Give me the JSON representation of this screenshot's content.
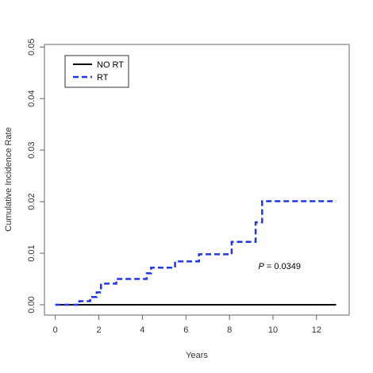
{
  "chart_data": {
    "type": "line",
    "title": "",
    "xlabel": "Years",
    "ylabel": "Cumulative Incidence Rate",
    "xlim": [
      -0.5,
      13.5
    ],
    "ylim": [
      -0.002,
      0.0505
    ],
    "x_ticks": [
      0,
      2,
      4,
      6,
      8,
      10,
      12
    ],
    "x_tick_labels": [
      "0",
      "2",
      "4",
      "6",
      "8",
      "10",
      "12"
    ],
    "y_ticks": [
      0.0,
      0.01,
      0.02,
      0.03,
      0.04,
      0.05
    ],
    "y_tick_labels": [
      "0.00",
      "0.01",
      "0.02",
      "0.03",
      "0.04",
      "0.05"
    ],
    "grid": false,
    "legend": {
      "placement": "top-left",
      "entries": [
        "NO RT",
        "RT"
      ]
    },
    "annotation": {
      "italic": "P",
      "text": " = 0.0349",
      "x": 10.3,
      "y": 0.0069
    },
    "series": [
      {
        "name": "NO RT",
        "style": "solid",
        "color": "#000000",
        "x": [
          0,
          12.9
        ],
        "y": [
          0.0,
          0.0
        ]
      },
      {
        "name": "RT",
        "style": "dashed",
        "color": "#1f35e8",
        "x": [
          0,
          1.1,
          1.6,
          1.9,
          2.1,
          2.8,
          4.2,
          4.4,
          5.5,
          6.6,
          8.1,
          9.2,
          9.5,
          12.9
        ],
        "y": [
          0.0,
          0.0007,
          0.0015,
          0.0024,
          0.0041,
          0.005,
          0.0061,
          0.0072,
          0.0084,
          0.0098,
          0.0122,
          0.016,
          0.0201,
          0.0201
        ]
      }
    ]
  }
}
